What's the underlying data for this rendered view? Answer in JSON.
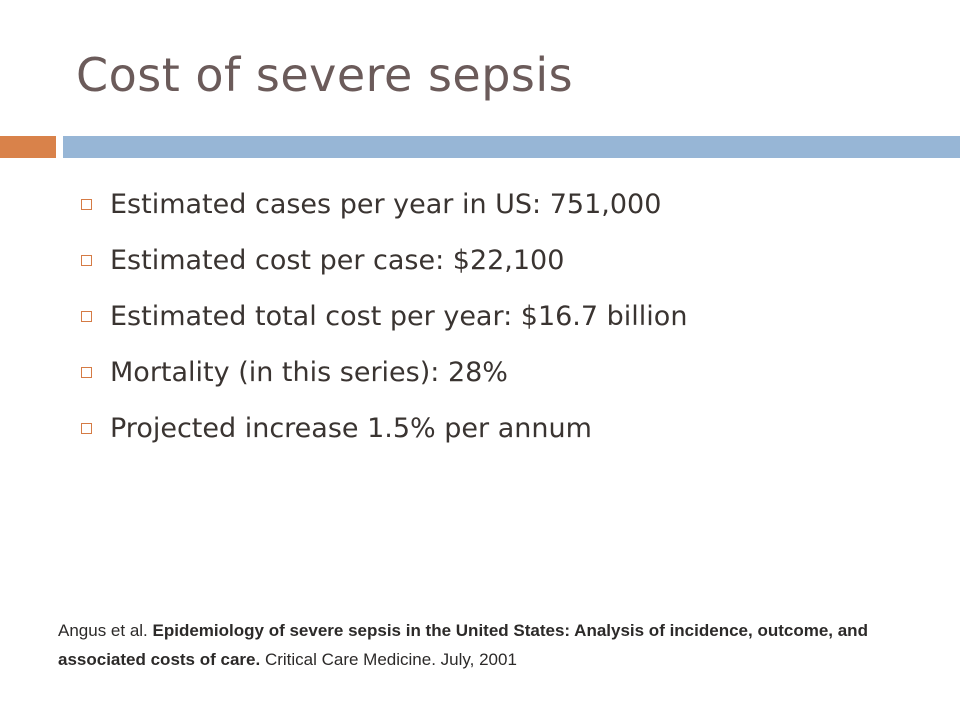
{
  "slide": {
    "title": "Cost of severe sepsis",
    "accent_color": "#d9824a",
    "bar_color": "#97b6d6",
    "bullets": [
      "Estimated cases per year in US: 751,000",
      "Estimated cost per case: $22,100",
      "Estimated total cost per year: $16.7 billion",
      "Mortality (in this series): 28%",
      "Projected increase 1.5% per annum"
    ],
    "citation": {
      "authors": "Angus et al. ",
      "title": "Epidemiology of severe sepsis in the United States: Analysis of incidence, outcome, and associated costs of care.",
      "journal": " Critical Care Medicine.  July, 2001"
    }
  }
}
